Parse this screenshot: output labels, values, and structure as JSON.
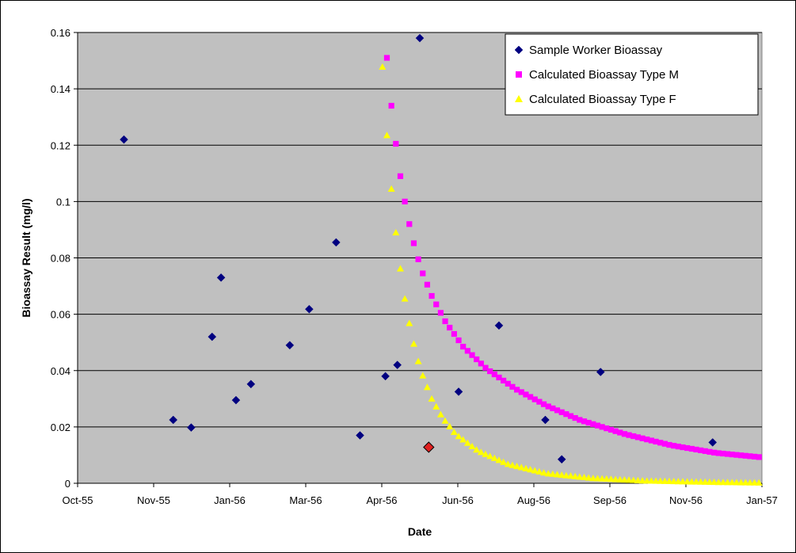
{
  "chart_data": {
    "type": "scatter",
    "xlabel": "Date",
    "ylabel": "Bioassay Result (mg/l)",
    "x_axis": {
      "ticks": [
        "Oct-55",
        "Nov-55",
        "Jan-56",
        "Mar-56",
        "Apr-56",
        "Jun-56",
        "Aug-56",
        "Sep-56",
        "Nov-56",
        "Jan-57"
      ],
      "range": [
        "1955-10-01",
        "1957-01-01"
      ]
    },
    "y_axis": {
      "ticks": [
        "0",
        "0.02",
        "0.04",
        "0.06",
        "0.08",
        "0.1",
        "0.12",
        "0.14",
        "0.16"
      ],
      "range": [
        0,
        0.16
      ]
    },
    "grid": "horizontal",
    "plot_background": "#c0c0c0",
    "legend_position": "top-right",
    "series": [
      {
        "name": "Sample Worker Bioassay",
        "marker": "diamond",
        "color": "#000080",
        "points": [
          {
            "x": "1955-11-01",
            "y": 0.122
          },
          {
            "x": "1955-12-04",
            "y": 0.0225
          },
          {
            "x": "1955-12-16",
            "y": 0.0198
          },
          {
            "x": "1955-12-30",
            "y": 0.052
          },
          {
            "x": "1956-01-05",
            "y": 0.073
          },
          {
            "x": "1956-01-15",
            "y": 0.0295
          },
          {
            "x": "1956-01-25",
            "y": 0.0352
          },
          {
            "x": "1956-02-20",
            "y": 0.049
          },
          {
            "x": "1956-03-04",
            "y": 0.0618
          },
          {
            "x": "1956-03-22",
            "y": 0.0855
          },
          {
            "x": "1956-04-07",
            "y": 0.017
          },
          {
            "x": "1956-04-24",
            "y": 0.038
          },
          {
            "x": "1956-05-02",
            "y": 0.042
          },
          {
            "x": "1956-05-17",
            "y": 0.158
          },
          {
            "x": "1956-06-12",
            "y": 0.0325
          },
          {
            "x": "1956-07-09",
            "y": 0.056
          },
          {
            "x": "1956-08-09",
            "y": 0.0225
          },
          {
            "x": "1956-08-20",
            "y": 0.0085
          },
          {
            "x": "1956-09-15",
            "y": 0.0395
          },
          {
            "x": "1956-11-29",
            "y": 0.0145
          }
        ]
      },
      {
        "name": "",
        "marker": "diamond",
        "color": "#e02020",
        "points": [
          {
            "x": "1956-05-23",
            "y": 0.0128
          }
        ]
      },
      {
        "name": "Calculated Bioassay Type M",
        "marker": "square",
        "color": "#ff00ff",
        "start": "1956-04-25",
        "end": "1957-01-01",
        "formula_description": "decaying curve from 0.151 at first point",
        "points": [
          {
            "x": "1956-04-25",
            "y": 0.151
          },
          {
            "x": "1956-04-28",
            "y": 0.134
          },
          {
            "x": "1956-05-01",
            "y": 0.1205
          },
          {
            "x": "1956-05-04",
            "y": 0.109
          },
          {
            "x": "1956-05-07",
            "y": 0.1
          },
          {
            "x": "1956-05-10",
            "y": 0.092
          },
          {
            "x": "1956-05-13",
            "y": 0.0852
          },
          {
            "x": "1956-05-16",
            "y": 0.0795
          },
          {
            "x": "1956-05-19",
            "y": 0.0745
          },
          {
            "x": "1956-05-25",
            "y": 0.0665
          },
          {
            "x": "1956-06-03",
            "y": 0.0575
          },
          {
            "x": "1956-06-15",
            "y": 0.0485
          },
          {
            "x": "1956-07-01",
            "y": 0.0405
          },
          {
            "x": "1956-07-20",
            "y": 0.0335
          },
          {
            "x": "1956-08-10",
            "y": 0.0275
          },
          {
            "x": "1956-09-01",
            "y": 0.0225
          },
          {
            "x": "1956-10-01",
            "y": 0.0175
          },
          {
            "x": "1956-11-01",
            "y": 0.0135
          },
          {
            "x": "1956-12-01",
            "y": 0.0108
          },
          {
            "x": "1957-01-01",
            "y": 0.0092
          }
        ]
      },
      {
        "name": "Calculated Bioassay Type F",
        "marker": "triangle",
        "color": "#ffff00",
        "points": [
          {
            "x": "1956-04-22",
            "y": 0.1478
          },
          {
            "x": "1956-04-25",
            "y": 0.1235
          },
          {
            "x": "1956-04-28",
            "y": 0.1045
          },
          {
            "x": "1956-05-01",
            "y": 0.089
          },
          {
            "x": "1956-05-04",
            "y": 0.0762
          },
          {
            "x": "1956-05-07",
            "y": 0.0655
          },
          {
            "x": "1956-05-10",
            "y": 0.0568
          },
          {
            "x": "1956-05-13",
            "y": 0.0495
          },
          {
            "x": "1956-05-16",
            "y": 0.0433
          },
          {
            "x": "1956-05-19",
            "y": 0.0382
          },
          {
            "x": "1956-05-25",
            "y": 0.03
          },
          {
            "x": "1956-06-01",
            "y": 0.0235
          },
          {
            "x": "1956-06-10",
            "y": 0.0175
          },
          {
            "x": "1956-06-25",
            "y": 0.0115
          },
          {
            "x": "1956-07-15",
            "y": 0.0068
          },
          {
            "x": "1956-08-10",
            "y": 0.0035
          },
          {
            "x": "1956-09-10",
            "y": 0.0018
          },
          {
            "x": "1956-10-15",
            "y": 0.0009
          },
          {
            "x": "1956-12-01",
            "y": 0.0004
          },
          {
            "x": "1957-01-01",
            "y": 0.0002
          }
        ]
      }
    ]
  }
}
